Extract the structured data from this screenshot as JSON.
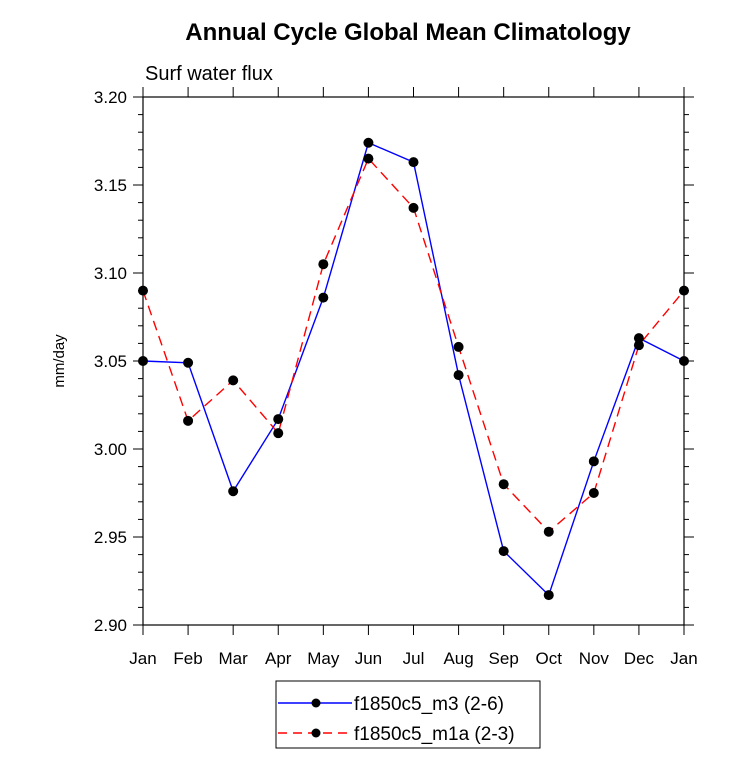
{
  "chart_data": {
    "type": "line",
    "title": "Annual Cycle Global Mean Climatology",
    "subtitle": "Surf water flux",
    "xlabel": "",
    "ylabel": "mm/day",
    "categories": [
      "Jan",
      "Feb",
      "Mar",
      "Apr",
      "May",
      "Jun",
      "Jul",
      "Aug",
      "Sep",
      "Oct",
      "Nov",
      "Dec",
      "Jan"
    ],
    "ylim": [
      2.9,
      3.2
    ],
    "yticks": [
      "2.90",
      "2.95",
      "3.00",
      "3.05",
      "3.10",
      "3.15",
      "3.20"
    ],
    "ytick_values": [
      2.9,
      2.95,
      3.0,
      3.05,
      3.1,
      3.15,
      3.2
    ],
    "grid": false,
    "legend_position": "bottom-center",
    "series": [
      {
        "name": "f1850c5_m3 (2-6)",
        "color": "#0000ff",
        "dash": "solid",
        "marker": "filled-circle",
        "values": [
          3.05,
          3.049,
          2.976,
          3.017,
          3.086,
          3.174,
          3.163,
          3.042,
          2.942,
          2.917,
          2.993,
          3.063,
          3.05
        ]
      },
      {
        "name": "f1850c5_m1a (2-3)",
        "color": "#ff0000",
        "dash": "dashed",
        "marker": "filled-circle",
        "values": [
          3.09,
          3.016,
          3.039,
          3.009,
          3.105,
          3.165,
          3.137,
          3.058,
          2.98,
          2.953,
          2.975,
          3.059,
          3.09
        ]
      }
    ]
  }
}
